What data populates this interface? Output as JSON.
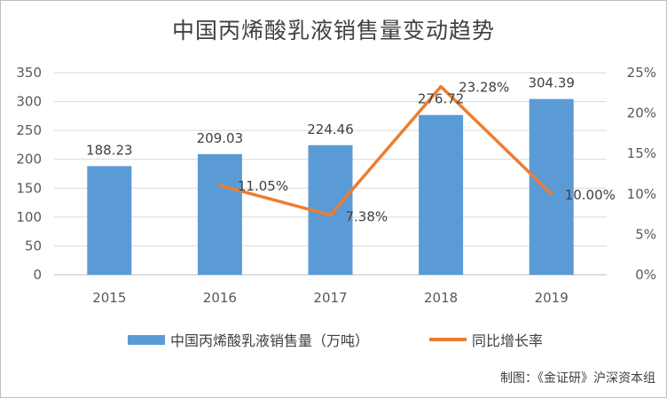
{
  "title": "中国丙烯酸乳液销售量变动趋势",
  "source": "制图：《金证研》沪深资本组",
  "colors": {
    "bar": "#5b9bd5",
    "line": "#ed7d31",
    "grid": "#d9d9d9"
  },
  "chart_data": {
    "type": "bar+line",
    "categories": [
      "2015",
      "2016",
      "2017",
      "2018",
      "2019"
    ],
    "series": [
      {
        "name": "中国丙烯酸乳液销售量（万吨）",
        "type": "bar",
        "axis": "left",
        "values": [
          188.23,
          209.03,
          224.46,
          276.72,
          304.39
        ],
        "labels": [
          "188.23",
          "209.03",
          "224.46",
          "276.72",
          "304.39"
        ]
      },
      {
        "name": "同比增长率",
        "type": "line",
        "axis": "right",
        "values": [
          null,
          11.05,
          7.38,
          23.28,
          10.0
        ],
        "labels": [
          "",
          "11.05%",
          "7.38%",
          "23.28%",
          "10.00%"
        ]
      }
    ],
    "y_left": {
      "min": 0,
      "max": 350,
      "ticks": [
        "0",
        "50",
        "100",
        "150",
        "200",
        "250",
        "300",
        "350"
      ]
    },
    "y_right": {
      "min": 0,
      "max": 25,
      "ticks": [
        "0%",
        "5%",
        "10%",
        "15%",
        "20%",
        "25%"
      ]
    },
    "grid": true,
    "legend": "bottom"
  }
}
